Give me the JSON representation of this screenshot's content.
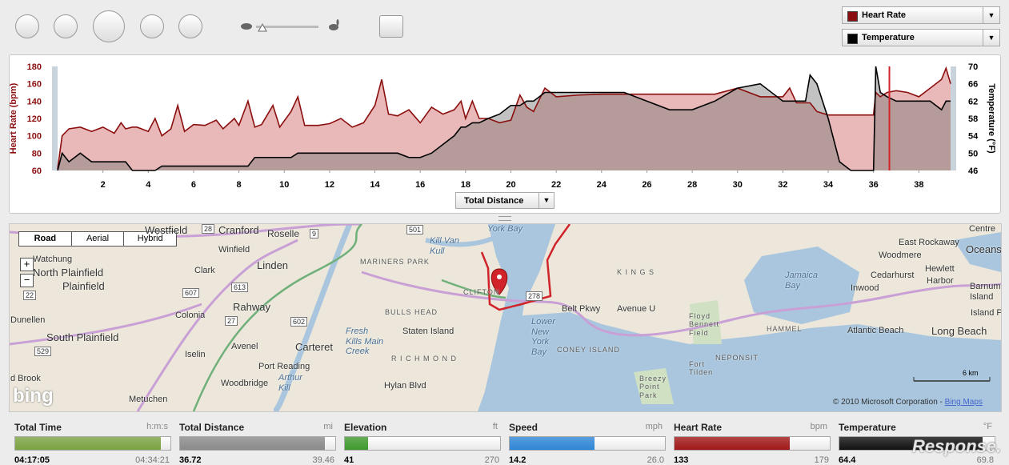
{
  "selectors": [
    "Heart Rate",
    "Temperature"
  ],
  "chart_data": {
    "type": "area",
    "y_label": "Heart Rate (bpm)",
    "y2_label": "Temperature (°F)",
    "x_selector": "Total Distance",
    "x": [
      0,
      0.2,
      0.5,
      1,
      1.5,
      2,
      2.5,
      2.8,
      3,
      3.3,
      3.5,
      4,
      4.3,
      4.6,
      5,
      5.3,
      5.6,
      6,
      6.5,
      7,
      7.3,
      7.8,
      8,
      8.4,
      8.7,
      9,
      9.5,
      9.8,
      10.3,
      10.6,
      10.9,
      11.5,
      12,
      12.5,
      13,
      13.5,
      14,
      14.3,
      14.6,
      15,
      15.5,
      16,
      16.5,
      17,
      17.5,
      17.8,
      18,
      18.3,
      18.6,
      19,
      19.5,
      20,
      20.4,
      20.7,
      21,
      21.5,
      22,
      23,
      24,
      25,
      26,
      27,
      28,
      29,
      30,
      31,
      32,
      32.3,
      32.6,
      33,
      33.2,
      33.5,
      34,
      34.5,
      35,
      35.5,
      36,
      36.1,
      36.3,
      36.6,
      37,
      37.5,
      38,
      38.5,
      39,
      39.2,
      39.4
    ],
    "xlim": [
      0,
      39.4
    ],
    "xticks": [
      2,
      4,
      6,
      8,
      10,
      12,
      14,
      16,
      18,
      20,
      22,
      24,
      26,
      28,
      30,
      32,
      34,
      36,
      38
    ],
    "ylim": [
      60,
      180
    ],
    "yticks": [
      60,
      80,
      100,
      120,
      140,
      160,
      180
    ],
    "y2lim": [
      46,
      70
    ],
    "y2ticks": [
      46,
      50,
      54,
      58,
      62,
      66,
      70
    ],
    "cursor": 36.7,
    "series": [
      {
        "name": "Heart Rate",
        "color": "#8b0f0f",
        "values": [
          62,
          100,
          108,
          110,
          105,
          110,
          103,
          115,
          108,
          110,
          110,
          105,
          120,
          100,
          108,
          135,
          105,
          113,
          112,
          118,
          108,
          120,
          112,
          140,
          110,
          113,
          135,
          110,
          128,
          145,
          112,
          112,
          114,
          120,
          110,
          115,
          135,
          165,
          125,
          123,
          130,
          115,
          133,
          125,
          130,
          140,
          120,
          140,
          120,
          120,
          115,
          118,
          147,
          133,
          128,
          155,
          145,
          147,
          148,
          148,
          148,
          148,
          148,
          148,
          155,
          145,
          145,
          155,
          138,
          138,
          138,
          128,
          124,
          124,
          124,
          124,
          124,
          150,
          145,
          150,
          152,
          150,
          145,
          155,
          165,
          178,
          160
        ]
      },
      {
        "name": "Temperature",
        "color": "#000000",
        "axis": "y2",
        "values": [
          46,
          50,
          48,
          50,
          48,
          48,
          48,
          48,
          48,
          46,
          46,
          46,
          46,
          47,
          47,
          47,
          47,
          47,
          47,
          47,
          47,
          47,
          47,
          47,
          49,
          49,
          49,
          49,
          49,
          50,
          50,
          50,
          50,
          50,
          50,
          50,
          50,
          50,
          50,
          50,
          49,
          49,
          50,
          52,
          54,
          56,
          56,
          57,
          57,
          58,
          59,
          61,
          61,
          62,
          62,
          64,
          64,
          64,
          64,
          64,
          62,
          60,
          60,
          62,
          65,
          66,
          62,
          62,
          62,
          62,
          68,
          66,
          58,
          48,
          46,
          46,
          46,
          70,
          64,
          63,
          62,
          62,
          62,
          62,
          60,
          62,
          62
        ]
      }
    ]
  },
  "map": {
    "views": [
      "Road",
      "Aerial",
      "Hybrid"
    ],
    "zoom": [
      "+",
      "−"
    ],
    "labels": [
      "Westfield",
      "Cranford",
      "Roselle",
      "Winfield",
      "Linden",
      "Watchung",
      "North Plainfield",
      "Plainfield",
      "Clark",
      "Rahway",
      "Colonia",
      "Dunellen",
      "South Plainfield",
      "Avenel",
      "Carteret",
      "Iselin",
      "Port Reading",
      "Woodbridge",
      "Metuchen",
      "d Brook",
      "MARINERS PARK",
      "CLIFTON",
      "BULLS HEAD",
      "Staten Island",
      "R I C H M O N D",
      "Lower New York Bay",
      "CONEY ISLAND",
      "Avenue U",
      "Floyd Bennett Field",
      "Fort Tilden",
      "Breezy Point Park",
      "NEPONSIT",
      "HAMMEL",
      "Jamaica Bay",
      "Atlantic Beach",
      "Long Beach",
      "East Rockaway",
      "Woodmere",
      "Hewlett",
      "Harbor",
      "Cedarhurst",
      "Inwood",
      "Barnum Island",
      "Island Park",
      "Oceans",
      "Centre",
      "Belt Pkwy",
      "K I N G S",
      "Fresh Kills Main Creek",
      "Arthur Kill",
      "Kill Van Kull",
      "York Bay",
      "Hylan Blvd"
    ],
    "shields": [
      "28",
      "9",
      "501",
      "613",
      "607",
      "27",
      "602",
      "529",
      "22",
      "278"
    ],
    "scale": "6 km",
    "logo": "bing",
    "copyright": "© 2010 Microsoft Corporation -",
    "copyright_link": "Bing Maps"
  },
  "stats": [
    {
      "label": "Total Time",
      "unit": "h:m:s",
      "value": "04:17:05",
      "max": "04:34:21",
      "color": "#7aa342"
    },
    {
      "label": "Total Distance",
      "unit": "mi",
      "value": "36.72",
      "max": "39.46",
      "color": "#8a8a8a"
    },
    {
      "label": "Elevation",
      "unit": "ft",
      "value": "41",
      "max": "270",
      "color": "#3f9a2e"
    },
    {
      "label": "Speed",
      "unit": "mph",
      "value": "14.2",
      "max": "26.0",
      "color": "#2f86d6"
    },
    {
      "label": "Heart Rate",
      "unit": "bpm",
      "value": "133",
      "max": "179",
      "color": "#a01818"
    },
    {
      "label": "Temperature",
      "unit": "°F",
      "value": "64.4",
      "max": "69.8",
      "color": "#111111"
    }
  ],
  "watermark": "Response."
}
